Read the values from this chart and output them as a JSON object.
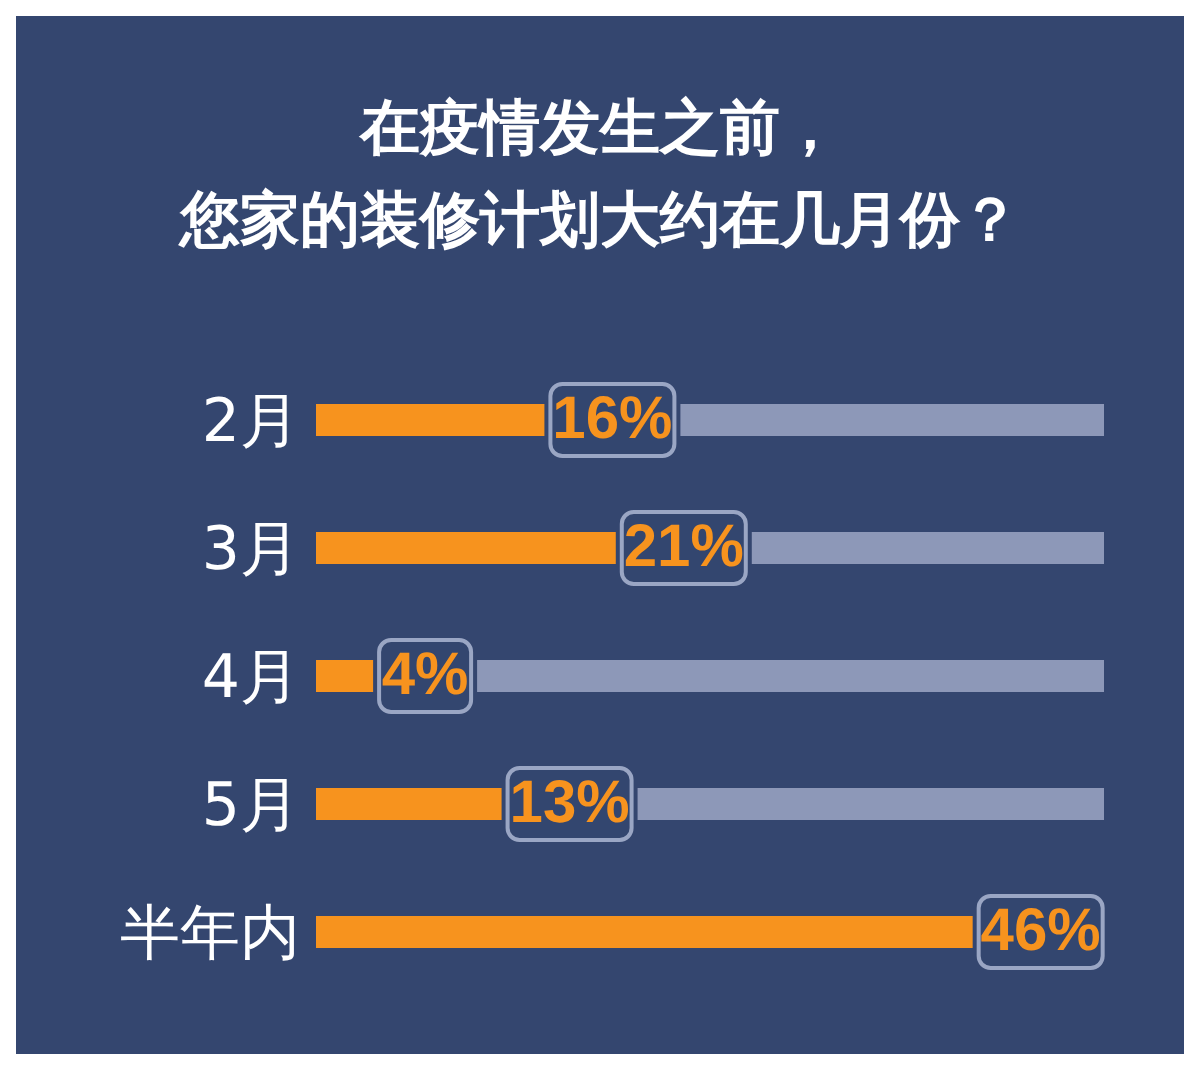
{
  "chart_data": {
    "type": "bar",
    "orientation": "horizontal",
    "title": "在疫情发生之前，",
    "subtitle": "您家的装修计划大约在几月份？",
    "categories": [
      "2月",
      "3月",
      "4月",
      "5月",
      "半年内"
    ],
    "values": [
      16,
      21,
      4,
      13,
      46
    ],
    "value_labels": [
      "16%",
      "21%",
      "4%",
      "13%",
      "46%"
    ],
    "color": "#f7931e"
  }
}
